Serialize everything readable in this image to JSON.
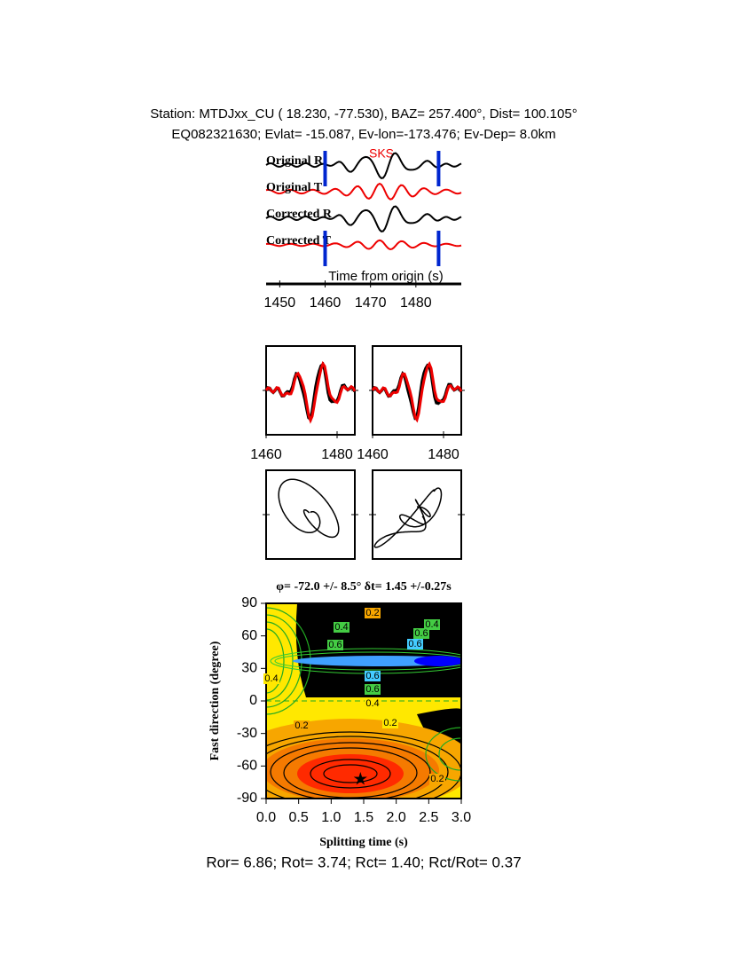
{
  "header": {
    "station": "Station: MTDJxx_CU (  18.230,  -77.530), BAZ=  257.400°, Dist=  100.105°",
    "event": "EQ082321630; Evlat= -15.087, Ev-lon=-173.476; Ev-Dep=  8.0km"
  },
  "waveforms": {
    "traces": [
      "Original R",
      "Original T",
      "Corrected R",
      "Corrected T"
    ],
    "phase": "SKS",
    "xlabel": "Time from origin (s)",
    "xlim": [
      1447,
      1490
    ],
    "xticks": [
      1450,
      1460,
      1470,
      1480
    ],
    "window": [
      1460,
      1485
    ]
  },
  "particle": {
    "xlim": [
      1460,
      1485
    ],
    "xticks": [
      1460,
      1480
    ]
  },
  "grid_search": {
    "title": "φ= -72.0 +/- 8.5° δt= 1.45 +/-0.27s",
    "xlabel": "Splitting time (s)",
    "ylabel": "Fast direction (degree)",
    "xlim": [
      0,
      3
    ],
    "ylim": [
      -90,
      90
    ],
    "xticks": [
      {
        "value": 0,
        "label": "0.0"
      },
      {
        "value": 0.5,
        "label": "0.5"
      },
      {
        "value": 1,
        "label": "1.0"
      },
      {
        "value": 1.5,
        "label": "1.5"
      },
      {
        "value": 2,
        "label": "2.0"
      },
      {
        "value": 2.5,
        "label": "2.5"
      },
      {
        "value": 3,
        "label": "3.0"
      }
    ],
    "yticks": [
      -90,
      -60,
      -30,
      0,
      30,
      60,
      90
    ],
    "best": [
      1.45,
      -72.0
    ],
    "contour_labels": [
      "0.2",
      "0.4",
      "0.6",
      "0.4",
      "0.6",
      "0.6",
      "0.4",
      "0.6",
      "0.6",
      "0.4",
      "0.2",
      "0.2",
      "0.2"
    ]
  },
  "footer": "Ror= 6.86; Rot= 3.74; Rct= 1.40; Rct/Rot= 0.37"
}
